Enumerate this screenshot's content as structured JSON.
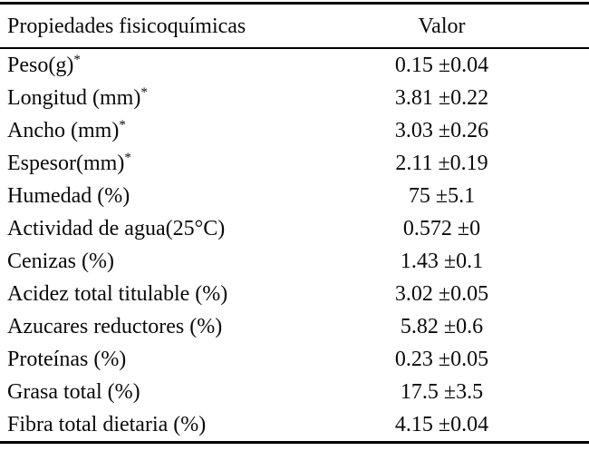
{
  "table": {
    "header": {
      "property": "Propiedades fisicoquímicas",
      "value": "Valor"
    },
    "rows": [
      {
        "label": "Peso(g)",
        "sup": "*",
        "value": "0.15 ±0.04"
      },
      {
        "label": "Longitud (mm)",
        "sup": "*",
        "value": "3.81 ±0.22"
      },
      {
        "label": "Ancho (mm)",
        "sup": "*",
        "value": "3.03 ±0.26"
      },
      {
        "label": "Espesor(mm)",
        "sup": "*",
        "value": "2.11 ±0.19"
      },
      {
        "label": "Humedad (%)",
        "sup": "",
        "value": "75 ±5.1"
      },
      {
        "label": "Actividad de agua(25°C)",
        "sup": "",
        "value": "0.572 ±0"
      },
      {
        "label": "Cenizas (%)",
        "sup": "",
        "value": "1.43 ±0.1"
      },
      {
        "label": "Acidez total titulable (%)",
        "sup": "",
        "value": "3.02 ±0.05"
      },
      {
        "label": "Azucares reductores (%)",
        "sup": "",
        "value": "5.82 ±0.6"
      },
      {
        "label": "Proteínas (%)",
        "sup": "",
        "value": "0.23 ±0.05"
      },
      {
        "label": "Grasa total (%)",
        "sup": "",
        "value": "17.5 ±3.5"
      },
      {
        "label": "Fibra total dietaria (%)",
        "sup": "",
        "value": "4.15 ±0.04"
      }
    ],
    "colors": {
      "text": "#0a0a0a",
      "rule": "#000000",
      "background": "#ffffff"
    }
  }
}
